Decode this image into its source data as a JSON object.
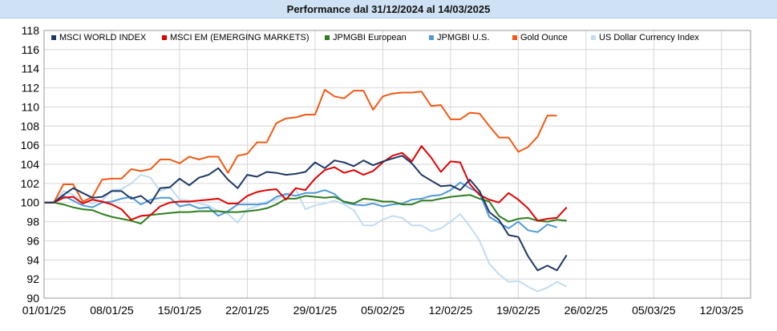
{
  "chart_data": {
    "type": "line",
    "title": "Performance dal 31/12/2024 al 14/03/2025",
    "xlabel": "",
    "ylabel": "",
    "ylim": [
      90,
      118
    ],
    "yticks": [
      90,
      92,
      94,
      96,
      98,
      100,
      102,
      104,
      106,
      108,
      110,
      112,
      114,
      116,
      118
    ],
    "xtick_labels": [
      "01/01/25",
      "08/01/25",
      "15/01/25",
      "22/01/25",
      "29/01/25",
      "05/02/25",
      "12/02/25",
      "19/02/25",
      "26/02/25",
      "05/03/25",
      "12/03/25"
    ],
    "xtick_index": [
      0,
      7,
      14,
      21,
      28,
      35,
      42,
      49,
      56,
      63,
      70
    ],
    "x_count": 74,
    "legend_position": "top-left",
    "series": [
      {
        "name": "MSCI WORLD INDEX",
        "color": "#1f3864",
        "values": [
          100,
          100,
          100.8,
          101.5,
          101,
          100.5,
          100.6,
          101.2,
          101.2,
          100.4,
          100.7,
          99.9,
          101.5,
          101.6,
          102.5,
          101.8,
          102.6,
          102.9,
          103.6,
          102.4,
          101.5,
          102.9,
          102.7,
          103.2,
          103.1,
          102.9,
          103,
          103.2,
          104.2,
          103.6,
          104.4,
          104.2,
          103.8,
          104.4,
          103.9,
          104.3,
          104.6,
          104.9,
          104.1,
          102.9,
          102.3,
          101.7,
          101.8,
          101.3,
          102.4,
          101.2,
          99,
          98.2,
          96.6,
          96.4,
          94.4,
          92.9,
          93.4,
          92.9,
          94.5
        ]
      },
      {
        "name": "MSCI EM (EMERGING MARKETS)",
        "color": "#e00000",
        "values": [
          100,
          100,
          100.5,
          100.6,
          99.9,
          100.3,
          100.1,
          99.8,
          99.3,
          98.2,
          98.6,
          98.7,
          99.6,
          100,
          100.1,
          100.1,
          100.2,
          100.3,
          100.4,
          99.9,
          99.9,
          100.7,
          101.1,
          101.3,
          101.4,
          100.3,
          101.5,
          101.3,
          102.5,
          103.4,
          103.7,
          103.1,
          103.4,
          102.9,
          103.3,
          104.2,
          104.9,
          105.2,
          104.3,
          105.9,
          104.7,
          103.2,
          104.3,
          104.2,
          101.9,
          100.8,
          100.3,
          100,
          101,
          100.3,
          99.4,
          98.1,
          98.3,
          98.4,
          99.5
        ]
      },
      {
        "name": "JPMGBI European",
        "color": "#2e7d1e",
        "values": [
          100,
          100,
          99.8,
          99.5,
          99.3,
          99.2,
          98.8,
          98.5,
          98.3,
          98.1,
          97.8,
          98.7,
          98.8,
          98.9,
          99,
          99,
          99.1,
          99.1,
          99.1,
          99,
          99,
          99.1,
          99.2,
          99.4,
          99.8,
          100.4,
          100.4,
          100.7,
          100.6,
          100.5,
          100.6,
          100.1,
          99.9,
          100.4,
          100.3,
          100.1,
          100.1,
          99.8,
          99.8,
          100.2,
          100.2,
          100.4,
          100.6,
          100.7,
          100.8,
          100.4,
          100.1,
          98.6,
          98,
          98.3,
          98.4,
          98.1,
          98,
          98.2,
          98.1
        ]
      },
      {
        "name": "JPMGBI U.S.",
        "color": "#4f9ad8",
        "values": [
          100,
          100,
          100.7,
          100.2,
          99.7,
          99.5,
          100,
          100.1,
          100.4,
          100.6,
          99.8,
          100.3,
          100.5,
          100.5,
          99.6,
          99.8,
          99.4,
          99.5,
          98.6,
          99.1,
          99.8,
          99.8,
          99.8,
          99.9,
          100.6,
          100.9,
          100.7,
          101,
          101,
          101.3,
          100.9,
          100,
          99.8,
          99.7,
          99.9,
          99.6,
          99.8,
          99.9,
          100.3,
          100.4,
          100.7,
          100.8,
          101.3,
          102.1,
          101.5,
          101,
          98.5,
          97.9,
          97.3,
          98,
          97.1,
          96.9,
          97.7,
          97.4
        ]
      },
      {
        "name": "Gold Ounce",
        "color": "#f05a14",
        "values": [
          100,
          100,
          101.9,
          101.9,
          100.1,
          100.6,
          102.4,
          102.5,
          102.5,
          103.5,
          103.3,
          103.5,
          104.5,
          104.5,
          104.1,
          104.8,
          104.5,
          104.8,
          104.8,
          103.1,
          104.9,
          105.1,
          106.3,
          106.3,
          108.3,
          108.8,
          108.9,
          109.2,
          109.2,
          111.8,
          111.1,
          110.9,
          111.7,
          111.7,
          109.7,
          111.1,
          111.4,
          111.5,
          111.5,
          111.6,
          110.1,
          110.2,
          108.7,
          108.7,
          109.4,
          109.3,
          108,
          106.8,
          106.8,
          105.3,
          105.8,
          106.9,
          109.1,
          109.1
        ]
      },
      {
        "name": "US Dollar Currency Index",
        "color": "#c0dcf2",
        "values": [
          100,
          100,
          101.2,
          100.8,
          100.2,
          99.9,
          100.2,
          101.3,
          101.4,
          102,
          102.9,
          102.6,
          101.2,
          101.6,
          100.3,
          100.2,
          99.9,
          99.7,
          99.1,
          98.8,
          97.9,
          99.3,
          99.6,
          100.1,
          100.3,
          100.8,
          101.4,
          99.3,
          99.7,
          99.9,
          100.2,
          99.8,
          99.2,
          97.6,
          97.6,
          98.2,
          98.6,
          98.4,
          97.6,
          97.6,
          97,
          97.3,
          98,
          98.8,
          97.5,
          96,
          93.6,
          92.5,
          91.7,
          91.8,
          91.2,
          90.7,
          91.1,
          91.7,
          91.2
        ]
      }
    ]
  }
}
